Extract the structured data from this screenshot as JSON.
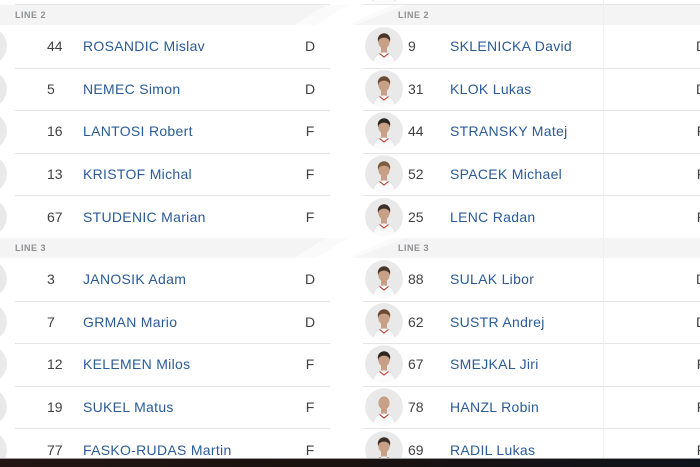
{
  "theme": {
    "name_link": "#2a5b97",
    "text": "#414141",
    "section_header_bg": "#f4f4f5",
    "section_header_bg2": "#fafafb",
    "section_header_text": "#8f9093",
    "separator": "#e4e4e4",
    "bottom_bar": "#1a1210"
  },
  "columns": [
    {
      "side": "left",
      "sections": [
        {
          "label": "LINE 2",
          "players": [
            {
              "number": "44",
              "name": "ROSANDIC Mislav",
              "position": "D"
            },
            {
              "number": "5",
              "name": "NEMEC Simon",
              "position": "D"
            },
            {
              "number": "16",
              "name": "LANTOSI Robert",
              "position": "F"
            },
            {
              "number": "13",
              "name": "KRISTOF Michal",
              "position": "F"
            },
            {
              "number": "67",
              "name": "STUDENIC Marian",
              "position": "F"
            }
          ]
        },
        {
          "label": "LINE 3",
          "players": [
            {
              "number": "3",
              "name": "JANOSIK Adam",
              "position": "D"
            },
            {
              "number": "7",
              "name": "GRMAN Mario",
              "position": "D"
            },
            {
              "number": "12",
              "name": "KELEMEN Milos",
              "position": "F"
            },
            {
              "number": "19",
              "name": "SUKEL Matus",
              "position": "F"
            },
            {
              "number": "77",
              "name": "FASKO-RUDAS Martin",
              "position": "F"
            }
          ]
        }
      ]
    },
    {
      "side": "right",
      "sections": [
        {
          "label": "LINE 2",
          "players": [
            {
              "number": "9",
              "name": "SKLENICKA David",
              "position": "D"
            },
            {
              "number": "31",
              "name": "KLOK Lukas",
              "position": "D"
            },
            {
              "number": "44",
              "name": "STRANSKY Matej",
              "position": "F"
            },
            {
              "number": "52",
              "name": "SPACEK Michael",
              "position": "F"
            },
            {
              "number": "25",
              "name": "LENC Radan",
              "position": "F"
            }
          ]
        },
        {
          "label": "LINE 3",
          "players": [
            {
              "number": "88",
              "name": "SULAK Libor",
              "position": "D"
            },
            {
              "number": "62",
              "name": "SUSTR Andrej",
              "position": "D"
            },
            {
              "number": "67",
              "name": "SMEJKAL Jiri",
              "position": "F"
            },
            {
              "number": "78",
              "name": "HANZL Robin",
              "position": "F"
            },
            {
              "number": "69",
              "name": "RADIL Lukas",
              "position": "F"
            }
          ]
        }
      ]
    }
  ]
}
